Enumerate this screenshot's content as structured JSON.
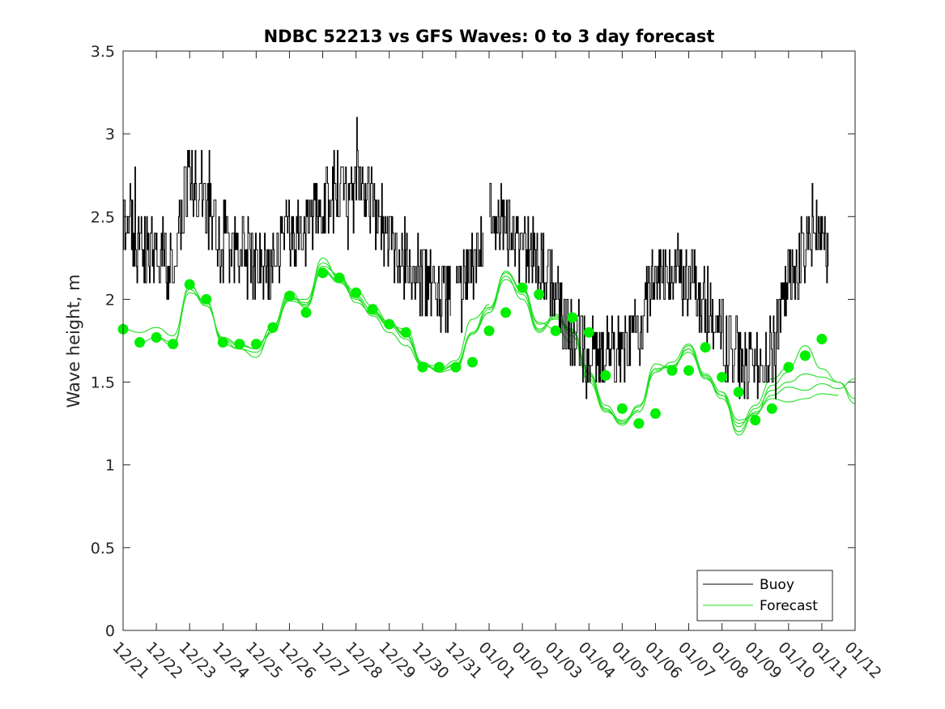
{
  "chart_data": {
    "type": "line",
    "title": "NDBC 52213 vs GFS Waves: 0 to 3 day forecast",
    "xlabel": "",
    "ylabel": "Wave height, m",
    "ylim": [
      0,
      3.5
    ],
    "yticks": [
      "0",
      "0.5",
      "1",
      "1.5",
      "2",
      "2.5",
      "3",
      "3.5"
    ],
    "xlim_days": [
      0,
      22
    ],
    "xtick_labels": [
      "12/21",
      "12/22",
      "12/23",
      "12/24",
      "12/25",
      "12/26",
      "12/27",
      "12/28",
      "12/29",
      "12/30",
      "12/31",
      "01/01",
      "01/02",
      "01/03",
      "01/04",
      "01/05",
      "01/06",
      "01/07",
      "01/08",
      "01/09",
      "01/10",
      "01/11",
      "01/12"
    ],
    "legend": {
      "position": "bottom-right",
      "entries": [
        {
          "name": "Buoy",
          "color": "#000000"
        },
        {
          "name": "Forecast",
          "color": "#00ee00"
        }
      ]
    },
    "colors": {
      "buoy": "#000000",
      "forecast": "#1fdf1f",
      "markers": "#00ee00"
    },
    "buoy_trend": {
      "day": [
        0,
        0.5,
        1,
        1.5,
        2,
        2.5,
        3,
        3.5,
        4,
        4.5,
        5,
        5.5,
        6,
        6.5,
        7,
        7.5,
        8,
        8.5,
        9,
        9.5,
        10,
        10.5,
        11,
        11.5,
        12,
        12.5,
        13,
        13.5,
        14,
        14.5,
        15,
        15.5,
        16,
        16.5,
        17,
        17.5,
        18,
        18.5,
        19,
        19.5,
        20,
        20.5,
        21,
        21.2
      ],
      "value": [
        2.45,
        2.3,
        2.25,
        2.2,
        2.75,
        2.6,
        2.35,
        2.3,
        2.2,
        2.25,
        2.4,
        2.45,
        2.55,
        2.7,
        2.75,
        2.6,
        2.35,
        2.25,
        2.1,
        2.05,
        2.0,
        2.2,
        2.5,
        2.45,
        2.35,
        2.25,
        2.0,
        1.75,
        1.7,
        1.65,
        1.65,
        1.85,
        2.15,
        2.2,
        2.1,
        1.95,
        1.8,
        1.65,
        1.55,
        1.7,
        2.1,
        2.35,
        2.5,
        2.2
      ]
    },
    "forecast_runs": [
      {
        "start": 0,
        "points": [
          [
            0,
            1.82
          ],
          [
            0.5,
            1.8
          ],
          [
            1,
            1.83
          ],
          [
            1.5,
            1.78
          ],
          [
            2,
            2.06
          ],
          [
            2.5,
            1.96
          ],
          [
            3,
            1.76
          ],
          [
            3.5,
            1.72
          ],
          [
            4,
            1.7
          ],
          [
            4.5,
            1.84
          ],
          [
            5,
            2.0
          ],
          [
            5.5,
            2.0
          ],
          [
            6,
            2.22
          ],
          [
            6.5,
            2.14
          ],
          [
            7,
            2.02
          ],
          [
            7.5,
            1.93
          ],
          [
            8,
            1.86
          ],
          [
            8.5,
            1.78
          ]
        ]
      },
      {
        "start": 0.5,
        "points": [
          [
            0.5,
            1.74
          ],
          [
            1,
            1.77
          ],
          [
            1.5,
            1.72
          ],
          [
            2,
            2.08
          ],
          [
            2.5,
            1.98
          ],
          [
            3,
            1.75
          ],
          [
            3.5,
            1.7
          ],
          [
            4,
            1.68
          ],
          [
            4.5,
            1.8
          ],
          [
            5,
            2.03
          ],
          [
            5.5,
            1.95
          ],
          [
            6,
            2.18
          ],
          [
            6.5,
            2.11
          ],
          [
            7,
            2.0
          ],
          [
            7.5,
            1.91
          ],
          [
            8,
            1.84
          ],
          [
            8.5,
            1.82
          ],
          [
            9,
            1.62
          ]
        ]
      },
      {
        "start": 1,
        "points": [
          [
            1,
            1.77
          ],
          [
            1.5,
            1.74
          ],
          [
            2,
            2.04
          ],
          [
            2.5,
            1.99
          ],
          [
            3,
            1.73
          ],
          [
            3.5,
            1.7
          ],
          [
            4,
            1.65
          ],
          [
            4.5,
            1.82
          ],
          [
            5,
            1.99
          ],
          [
            5.5,
            1.97
          ],
          [
            6,
            2.25
          ],
          [
            6.5,
            2.12
          ],
          [
            7,
            2.05
          ],
          [
            7.5,
            1.96
          ],
          [
            8,
            1.86
          ],
          [
            8.5,
            1.78
          ],
          [
            9,
            1.6
          ],
          [
            9.5,
            1.6
          ]
        ]
      },
      {
        "start": 2,
        "points": [
          [
            2,
            2.09
          ],
          [
            2.5,
            1.96
          ],
          [
            3,
            1.77
          ],
          [
            3.5,
            1.73
          ],
          [
            4,
            1.7
          ],
          [
            4.5,
            1.84
          ],
          [
            5,
            2.05
          ],
          [
            5.5,
            1.96
          ],
          [
            6,
            2.2
          ],
          [
            6.5,
            2.15
          ],
          [
            7,
            1.98
          ],
          [
            7.5,
            1.92
          ],
          [
            8,
            1.85
          ],
          [
            8.5,
            1.78
          ],
          [
            9,
            1.62
          ],
          [
            9.5,
            1.56
          ],
          [
            10,
            1.58
          ],
          [
            10.5,
            1.8
          ],
          [
            11,
            1.97
          ]
        ]
      },
      {
        "start": 4,
        "points": [
          [
            4,
            1.73
          ],
          [
            4.5,
            1.8
          ],
          [
            5,
            2.01
          ],
          [
            5.5,
            1.98
          ],
          [
            6,
            2.17
          ],
          [
            6.5,
            2.1
          ],
          [
            7,
            2.01
          ],
          [
            7.5,
            1.9
          ],
          [
            8,
            1.8
          ],
          [
            8.5,
            1.72
          ],
          [
            9,
            1.6
          ],
          [
            9.5,
            1.58
          ],
          [
            10,
            1.63
          ],
          [
            10.5,
            1.88
          ],
          [
            11,
            1.95
          ],
          [
            11.5,
            2.16
          ],
          [
            12,
            2.05
          ],
          [
            12.5,
            1.86
          ],
          [
            13,
            1.82
          ],
          [
            13.5,
            1.74
          ]
        ]
      },
      {
        "start": 6,
        "points": [
          [
            6,
            2.16
          ],
          [
            6.5,
            2.12
          ],
          [
            7,
            2.02
          ],
          [
            7.5,
            1.93
          ],
          [
            8,
            1.84
          ],
          [
            8.5,
            1.76
          ],
          [
            9,
            1.61
          ],
          [
            9.5,
            1.57
          ],
          [
            10,
            1.6
          ],
          [
            10.5,
            1.79
          ],
          [
            11,
            1.92
          ],
          [
            11.5,
            2.17
          ],
          [
            12,
            2.06
          ],
          [
            12.5,
            1.82
          ],
          [
            13,
            1.9
          ],
          [
            13.5,
            1.78
          ],
          [
            14,
            1.5
          ],
          [
            14.5,
            1.32
          ],
          [
            15,
            1.27
          ],
          [
            15.5,
            1.33
          ]
        ]
      },
      {
        "start": 8,
        "points": [
          [
            8,
            1.86
          ],
          [
            8.5,
            1.79
          ],
          [
            9,
            1.6
          ],
          [
            9.5,
            1.57
          ],
          [
            10,
            1.61
          ],
          [
            10.5,
            1.8
          ],
          [
            11,
            1.94
          ],
          [
            11.5,
            2.14
          ],
          [
            12,
            2.0
          ],
          [
            12.5,
            1.8
          ],
          [
            13,
            1.89
          ],
          [
            13.5,
            1.82
          ],
          [
            14,
            1.55
          ],
          [
            14.5,
            1.34
          ],
          [
            15,
            1.24
          ],
          [
            15.5,
            1.36
          ],
          [
            16,
            1.58
          ],
          [
            16.5,
            1.6
          ],
          [
            17,
            1.7
          ],
          [
            17.5,
            1.52
          ],
          [
            18,
            1.42
          ]
        ]
      },
      {
        "start": 10,
        "points": [
          [
            10,
            1.59
          ],
          [
            10.5,
            1.79
          ],
          [
            11,
            1.92
          ],
          [
            11.5,
            2.12
          ],
          [
            12,
            2.03
          ],
          [
            12.5,
            1.81
          ],
          [
            13,
            1.91
          ],
          [
            13.5,
            1.8
          ],
          [
            14,
            1.56
          ],
          [
            14.5,
            1.36
          ],
          [
            15,
            1.26
          ],
          [
            15.5,
            1.32
          ],
          [
            16,
            1.56
          ],
          [
            16.5,
            1.62
          ],
          [
            17,
            1.73
          ],
          [
            17.5,
            1.55
          ],
          [
            18,
            1.44
          ],
          [
            18.5,
            1.27
          ],
          [
            19,
            1.3
          ],
          [
            19.5,
            1.48
          ],
          [
            20,
            1.56
          ]
        ]
      },
      {
        "start": 12,
        "points": [
          [
            12,
            2.07
          ],
          [
            12.5,
            1.85
          ],
          [
            13,
            1.88
          ],
          [
            13.5,
            1.81
          ],
          [
            14,
            1.52
          ],
          [
            14.5,
            1.33
          ],
          [
            15,
            1.25
          ],
          [
            15.5,
            1.35
          ],
          [
            16,
            1.61
          ],
          [
            16.5,
            1.58
          ],
          [
            17,
            1.72
          ],
          [
            17.5,
            1.53
          ],
          [
            18,
            1.4
          ],
          [
            18.5,
            1.23
          ],
          [
            19,
            1.36
          ],
          [
            19.5,
            1.52
          ],
          [
            20,
            1.59
          ],
          [
            20.5,
            1.72
          ],
          [
            21,
            1.58
          ],
          [
            21.5,
            1.5
          ],
          [
            22,
            1.4
          ]
        ]
      },
      {
        "start": 14,
        "points": [
          [
            14,
            1.54
          ],
          [
            14.5,
            1.34
          ],
          [
            15,
            1.25
          ],
          [
            15.5,
            1.32
          ],
          [
            16,
            1.58
          ],
          [
            16.5,
            1.59
          ],
          [
            17,
            1.7
          ],
          [
            17.5,
            1.52
          ],
          [
            18,
            1.42
          ],
          [
            18.5,
            1.2
          ],
          [
            19,
            1.34
          ],
          [
            19.5,
            1.45
          ],
          [
            20,
            1.5
          ],
          [
            20.5,
            1.55
          ],
          [
            21,
            1.53
          ],
          [
            21.5,
            1.5
          ],
          [
            22,
            1.37
          ]
        ]
      },
      {
        "start": 16,
        "points": [
          [
            16,
            1.57
          ],
          [
            16.5,
            1.6
          ],
          [
            17,
            1.68
          ],
          [
            17.5,
            1.54
          ],
          [
            18,
            1.42
          ],
          [
            18.5,
            1.25
          ],
          [
            19,
            1.31
          ],
          [
            19.5,
            1.42
          ],
          [
            20,
            1.47
          ],
          [
            20.5,
            1.45
          ],
          [
            21,
            1.49
          ],
          [
            21.5,
            1.46
          ],
          [
            22,
            1.52
          ]
        ]
      },
      {
        "start": 18,
        "points": [
          [
            18,
            1.44
          ],
          [
            18.5,
            1.18
          ],
          [
            19,
            1.32
          ],
          [
            19.5,
            1.4
          ],
          [
            20,
            1.38
          ],
          [
            20.5,
            1.4
          ],
          [
            21,
            1.43
          ],
          [
            21.5,
            1.42
          ]
        ]
      }
    ],
    "markers": {
      "day": [
        0,
        0.5,
        1,
        1.5,
        2,
        2.5,
        3,
        3.5,
        4,
        4.5,
        5,
        5.5,
        6,
        6.5,
        7,
        7.5,
        8,
        8.5,
        9,
        9.5,
        10,
        10.5,
        11,
        11.5,
        12,
        12.5,
        13,
        13.5,
        14,
        14.5,
        15,
        15.5,
        16,
        16.5,
        17,
        17.5,
        18,
        18.5,
        19,
        19.5,
        20,
        20.5,
        21
      ],
      "value": [
        1.82,
        1.74,
        1.77,
        1.73,
        2.09,
        2.0,
        1.74,
        1.73,
        1.73,
        1.83,
        2.02,
        1.92,
        2.16,
        2.13,
        2.04,
        1.94,
        1.85,
        1.8,
        1.59,
        1.59,
        1.59,
        1.62,
        1.81,
        1.92,
        2.07,
        2.03,
        1.81,
        1.89,
        1.8,
        1.54,
        1.34,
        1.25,
        1.31,
        1.57,
        1.57,
        1.71,
        1.53,
        1.44,
        1.27,
        1.34,
        1.59,
        1.66,
        1.76
      ]
    }
  }
}
